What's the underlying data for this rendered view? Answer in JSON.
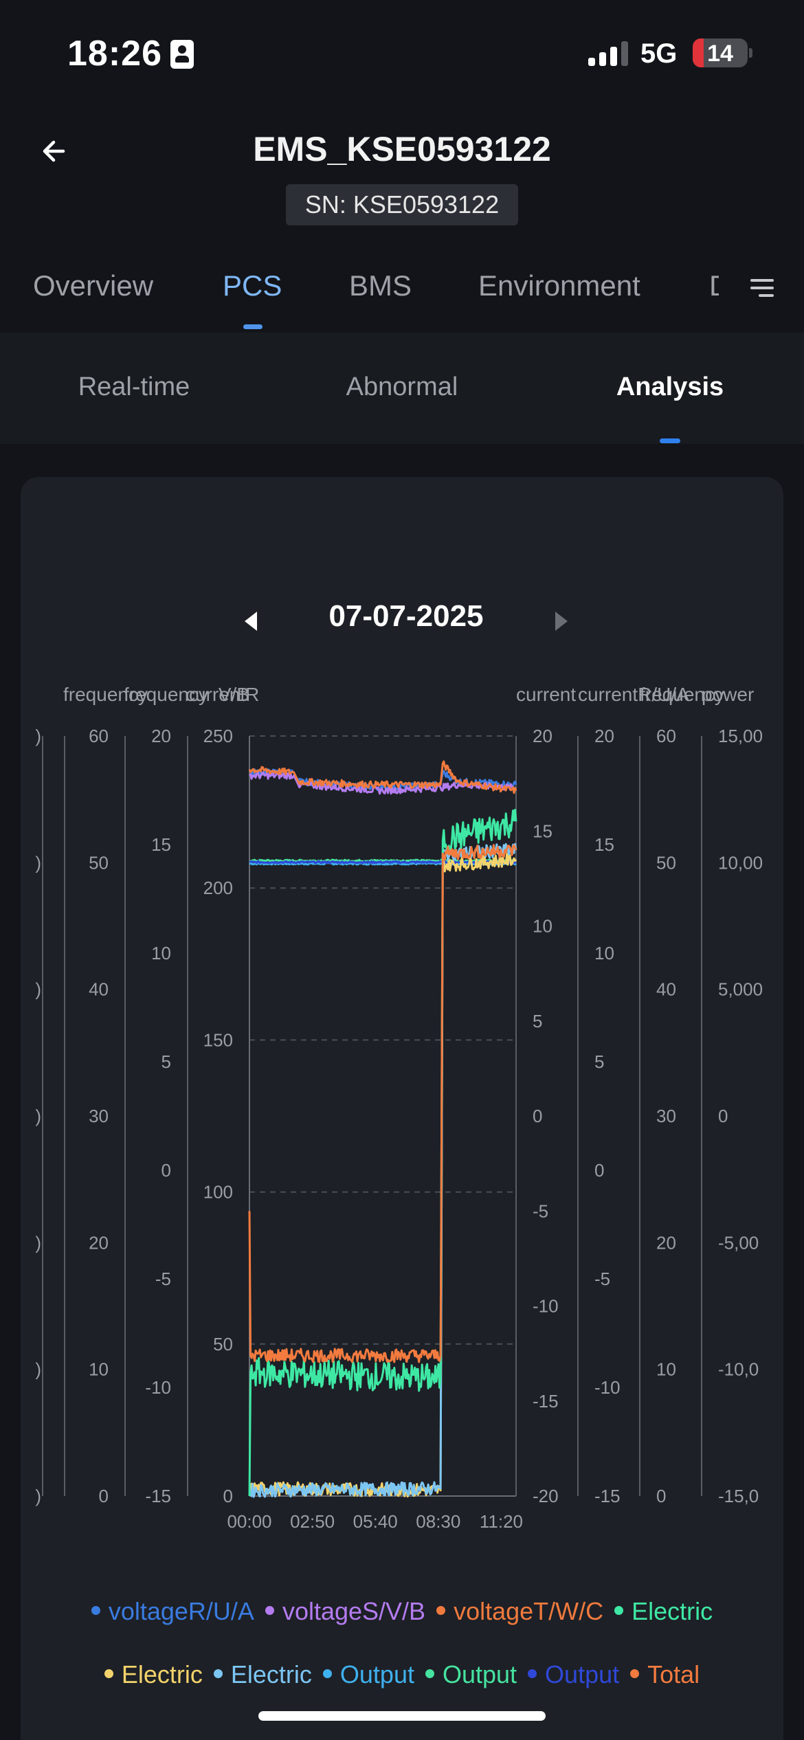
{
  "status_bar": {
    "time": "18:26",
    "network": "5G",
    "battery": "14"
  },
  "header": {
    "title": "EMS_KSE0593122",
    "sn": "SN: KSE0593122"
  },
  "main_tabs": [
    {
      "label": "Overview"
    },
    {
      "label": "PCS"
    },
    {
      "label": "BMS"
    },
    {
      "label": "Environment"
    },
    {
      "label": "D"
    }
  ],
  "sub_tabs": [
    {
      "label": "Real-time"
    },
    {
      "label": "Abnormal"
    },
    {
      "label": "Analysis"
    }
  ],
  "date": "07-07-2025",
  "colors": {
    "voltageR": "#3a7be0",
    "voltageS": "#b47cf0",
    "voltageT": "#f07a3e",
    "electric_green": "#3ee8a4",
    "electric_yellow": "#f3d36b",
    "electric_blue": "#7cc6f3",
    "output_sky": "#3fb1ee",
    "output_green": "#46e3a0",
    "output_navy": "#2f48d8",
    "total_orange": "#f37b3f"
  },
  "chart_data": {
    "type": "line",
    "x": [
      "00:00",
      "02:50",
      "05:40",
      "08:30",
      "11:20"
    ],
    "xlim": [
      "00:00",
      "12:00"
    ],
    "axes_left": [
      {
        "name": "",
        "ticks": [
          ")",
          ")",
          ")",
          ")",
          ")",
          ")",
          ")"
        ]
      },
      {
        "name": "frequency",
        "ticks": [
          "0",
          "10",
          "20",
          "30",
          "40",
          "50",
          "60"
        ],
        "ylim": [
          0,
          60
        ]
      },
      {
        "name": "frequency",
        "ticks": [
          "-15",
          "-10",
          "-5",
          "0",
          "5",
          "10",
          "15",
          "20"
        ],
        "ylim": [
          -15,
          20
        ]
      },
      {
        "name": "voltageR/U/A, voltageS/V/B",
        "ticks": [
          "0",
          "50",
          "100",
          "150",
          "200",
          "250"
        ],
        "ylim": [
          0,
          250
        ]
      }
    ],
    "axes_right": [
      {
        "name": "current",
        "ticks": [
          "-20",
          "-15",
          "-10",
          "-5",
          "0",
          "5",
          "10",
          "15",
          "20"
        ],
        "ylim": [
          -20,
          20
        ]
      },
      {
        "name": "currentR/U/A",
        "ticks": [
          "-15",
          "-10",
          "-5",
          "0",
          "5",
          "10",
          "15",
          "20"
        ],
        "ylim": [
          -15,
          20
        ]
      },
      {
        "name": "frequency",
        "ticks": [
          "0",
          "10",
          "20",
          "30",
          "40",
          "50",
          "60"
        ],
        "ylim": [
          0,
          60
        ]
      },
      {
        "name": "power",
        "ticks": [
          "-15,0",
          "-10,0",
          "-5,00",
          "0",
          "5,000",
          "10,00",
          "15,00"
        ],
        "ylim": [
          -15000,
          15000
        ]
      }
    ],
    "axis_title_labels": {
      "left": [
        "frequency",
        "frequency",
        "currentR",
        "V/B"
      ],
      "right": [
        "current",
        "currentR/U/A",
        "frequency",
        "power"
      ]
    },
    "series": [
      {
        "name": "voltageR/U/A",
        "axis": "voltage",
        "points": [
          [
            0,
            238
          ],
          [
            2.0,
            238
          ],
          [
            2.2,
            235
          ],
          [
            6.0,
            233
          ],
          [
            8.6,
            234
          ],
          [
            8.7,
            238
          ],
          [
            9.4,
            235
          ],
          [
            12,
            234
          ]
        ]
      },
      {
        "name": "voltageS/V/B",
        "axis": "voltage",
        "points": [
          [
            0,
            237
          ],
          [
            2.0,
            237
          ],
          [
            2.2,
            234
          ],
          [
            6.0,
            232
          ],
          [
            8.6,
            233
          ],
          [
            9.4,
            234
          ],
          [
            12,
            233
          ]
        ]
      },
      {
        "name": "voltageT/W/C",
        "axis": "voltage",
        "points": [
          [
            0,
            239
          ],
          [
            2.0,
            238
          ],
          [
            2.2,
            235
          ],
          [
            5.5,
            234
          ],
          [
            8.6,
            234
          ],
          [
            8.7,
            241
          ],
          [
            9.4,
            235
          ],
          [
            12,
            232
          ]
        ]
      },
      {
        "name": "Electric",
        "axis": "current",
        "points": [
          [
            0,
            -20
          ],
          [
            0.05,
            -13.5
          ],
          [
            8.6,
            -13.8
          ],
          [
            8.7,
            14.5
          ],
          [
            12,
            15.5
          ]
        ]
      },
      {
        "name": "Electric",
        "axis": "current",
        "points": [
          [
            0,
            -20
          ],
          [
            0.05,
            -19.6
          ],
          [
            8.6,
            -19.7
          ],
          [
            8.7,
            13.2
          ],
          [
            12,
            13.5
          ]
        ]
      },
      {
        "name": "Electric",
        "axis": "current",
        "points": [
          [
            0,
            -20
          ],
          [
            0.05,
            -19.7
          ],
          [
            8.6,
            -19.6
          ],
          [
            8.7,
            13.8
          ],
          [
            12,
            14.0
          ]
        ]
      },
      {
        "name": "Output",
        "axis": "voltage",
        "points": [
          [
            0,
            208
          ],
          [
            12,
            208
          ]
        ]
      },
      {
        "name": "Output",
        "axis": "voltage",
        "points": [
          [
            0,
            209
          ],
          [
            12,
            209
          ]
        ]
      },
      {
        "name": "Output",
        "axis": "voltage",
        "points": [
          [
            0,
            208.5
          ],
          [
            12,
            208.5
          ]
        ]
      },
      {
        "name": "Total",
        "axis": "current",
        "points": [
          [
            0,
            -5
          ],
          [
            0.05,
            -12.6
          ],
          [
            8.6,
            -12.6
          ],
          [
            8.7,
            13.8
          ],
          [
            12,
            14.0
          ]
        ]
      }
    ],
    "legend": [
      {
        "label": "voltageR/U/A",
        "color": "#3a7be0",
        "text_color": "#3a7be0"
      },
      {
        "label": "voltageS/V/B",
        "color": "#b47cf0",
        "text_color": "#b47cf0"
      },
      {
        "label": "voltageT/W/C",
        "color": "#f07a3e",
        "text_color": "#f07a3e"
      },
      {
        "label": "Electric",
        "color": "#3ee8a4",
        "text_color": "#3ee8a4"
      },
      {
        "label": "Electric",
        "color": "#f3d36b",
        "text_color": "#f3d36b"
      },
      {
        "label": "Electric",
        "color": "#7cc6f3",
        "text_color": "#7cc6f3"
      },
      {
        "label": "Output",
        "color": "#3fb1ee",
        "text_color": "#3fb1ee"
      },
      {
        "label": "Output",
        "color": "#46e3a0",
        "text_color": "#46e3a0"
      },
      {
        "label": "Output",
        "color": "#2f48d8",
        "text_color": "#2f48d8"
      },
      {
        "label": "Total",
        "color": "#f37b3f",
        "text_color": "#f37b3f"
      }
    ],
    "grid": true,
    "legend_placement": "bottom"
  }
}
